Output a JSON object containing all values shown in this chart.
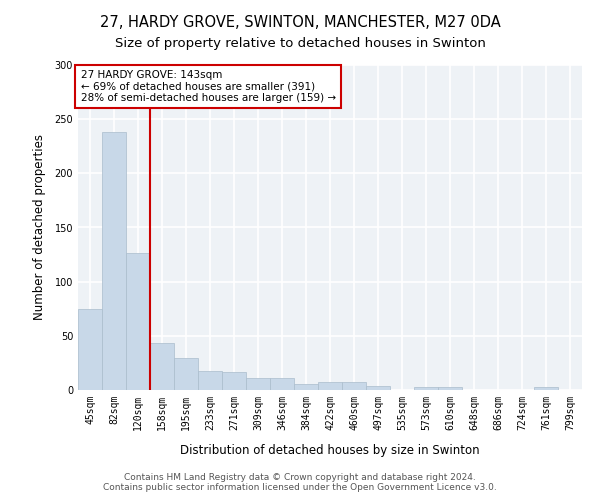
{
  "title_line1": "27, HARDY GROVE, SWINTON, MANCHESTER, M27 0DA",
  "title_line2": "Size of property relative to detached houses in Swinton",
  "xlabel": "Distribution of detached houses by size in Swinton",
  "ylabel": "Number of detached properties",
  "categories": [
    "45sqm",
    "82sqm",
    "120sqm",
    "158sqm",
    "195sqm",
    "233sqm",
    "271sqm",
    "309sqm",
    "346sqm",
    "384sqm",
    "422sqm",
    "460sqm",
    "497sqm",
    "535sqm",
    "573sqm",
    "610sqm",
    "648sqm",
    "686sqm",
    "724sqm",
    "761sqm",
    "799sqm"
  ],
  "values": [
    75,
    238,
    126,
    43,
    30,
    18,
    17,
    11,
    11,
    6,
    7,
    7,
    4,
    0,
    3,
    3,
    0,
    0,
    0,
    3,
    0
  ],
  "bar_color": "#c8d8e8",
  "bar_edge_color": "#aabccc",
  "vline_x": 2.5,
  "vline_color": "#cc0000",
  "annotation_text": "27 HARDY GROVE: 143sqm\n← 69% of detached houses are smaller (391)\n28% of semi-detached houses are larger (159) →",
  "annotation_box_color": "#cc0000",
  "ylim": [
    0,
    300
  ],
  "yticks": [
    0,
    50,
    100,
    150,
    200,
    250,
    300
  ],
  "footer_line1": "Contains HM Land Registry data © Crown copyright and database right 2024.",
  "footer_line2": "Contains public sector information licensed under the Open Government Licence v3.0.",
  "background_color": "#eef2f6",
  "grid_color": "#ffffff",
  "title_fontsize": 10.5,
  "subtitle_fontsize": 9.5,
  "axis_label_fontsize": 8.5,
  "tick_fontsize": 7,
  "annotation_fontsize": 7.5,
  "footer_fontsize": 6.5
}
